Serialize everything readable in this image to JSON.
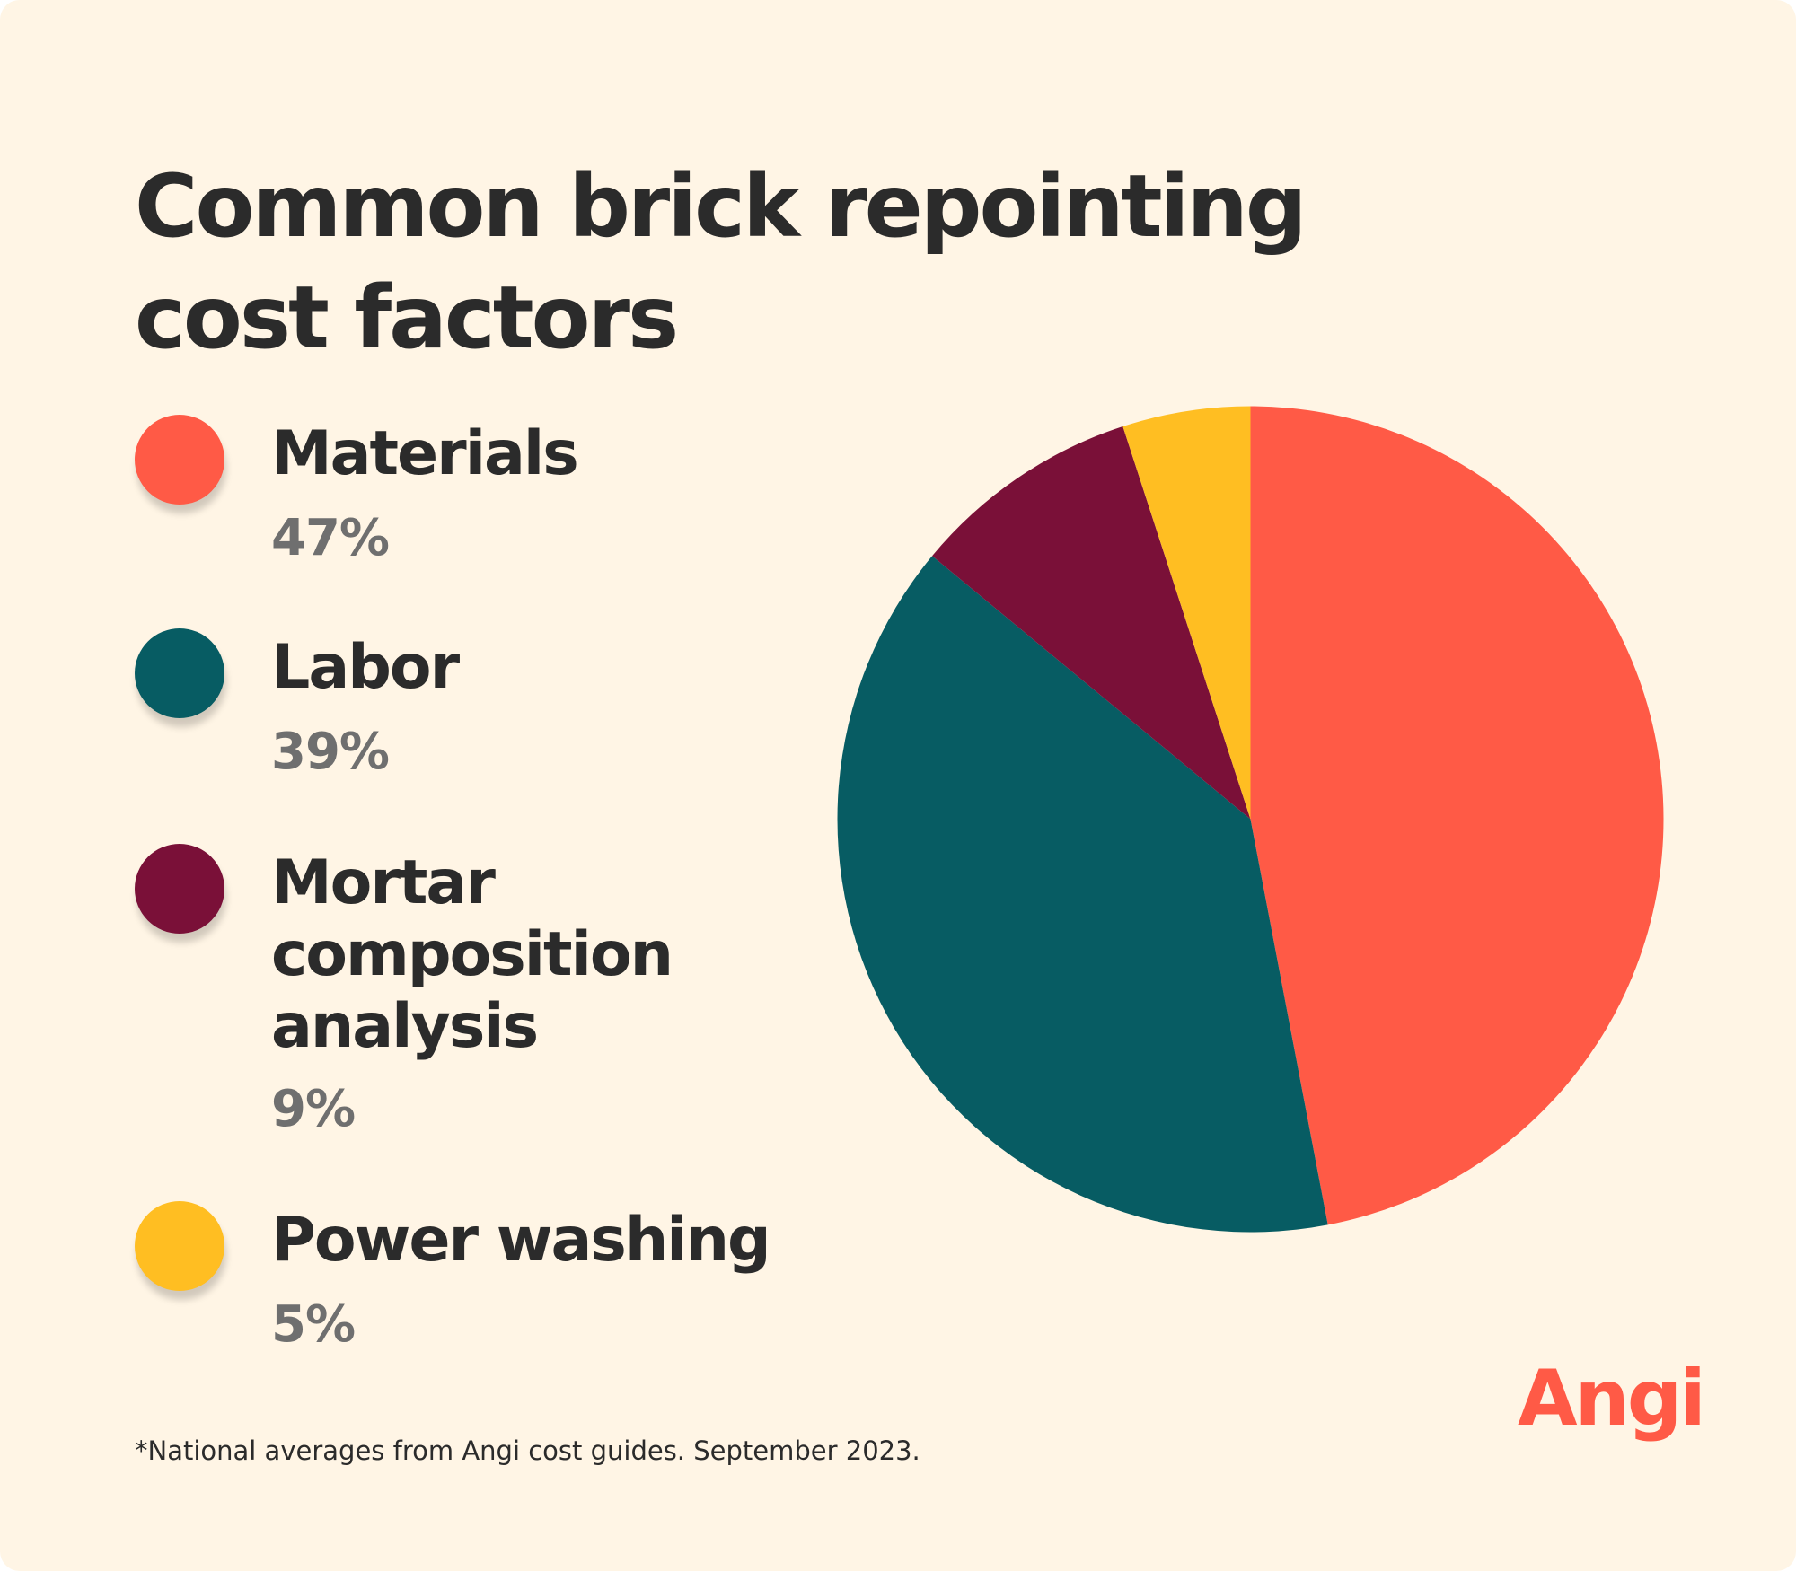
{
  "chart_data": {
    "type": "pie",
    "title": "Common brick repointing cost factors",
    "slices": [
      {
        "label": "Materials",
        "value": 47,
        "value_label": "47%",
        "color": "#ff5a46"
      },
      {
        "label": "Labor",
        "value": 39,
        "value_label": "39%",
        "color": "#075c63"
      },
      {
        "label": "Mortar composition analysis",
        "value": 9,
        "value_label": "9%",
        "color": "#7a1038"
      },
      {
        "label": "Power washing",
        "value": 5,
        "value_label": "5%",
        "color": "#ffbe22"
      }
    ],
    "legend": "left",
    "footnote": "*National averages from Angi cost guides. September 2023."
  },
  "brand": {
    "logo_text": "Angi",
    "color": "#ff5a46"
  },
  "background_color": "#fff5e5"
}
